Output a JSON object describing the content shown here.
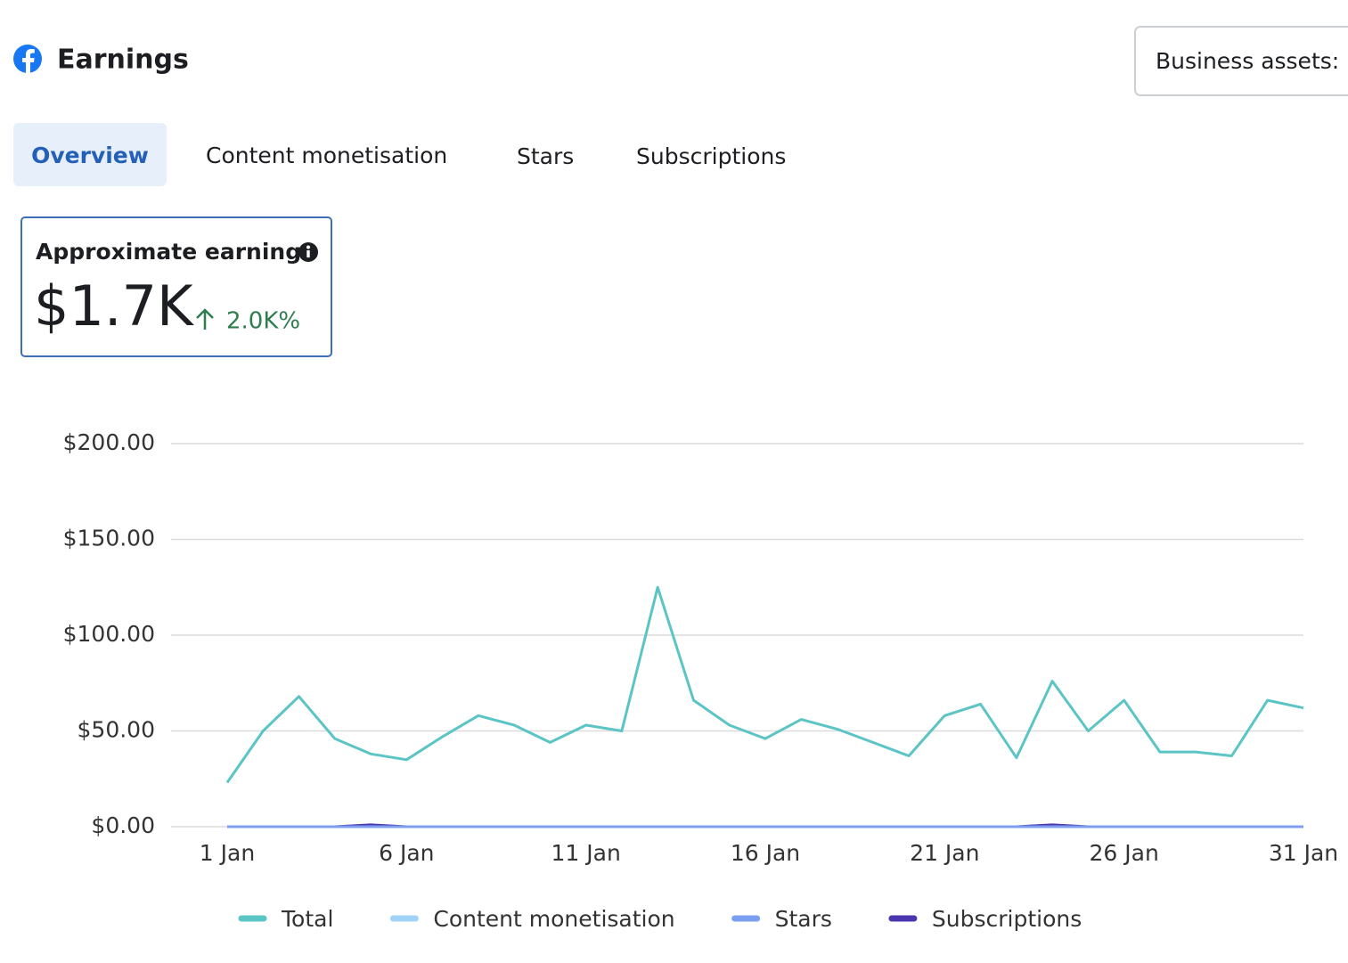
{
  "header": {
    "title": "Earnings",
    "button": "Business assets:"
  },
  "tabs": [
    "Overview",
    "Content monetisation",
    "Stars",
    "Subscriptions"
  ],
  "card": {
    "title": "Approximate earnings",
    "value": "$1.7K",
    "change": "2.0K%"
  },
  "chart_data": {
    "type": "line",
    "categories": [
      "1 Jan",
      null,
      null,
      null,
      null,
      "6 Jan",
      null,
      null,
      null,
      null,
      "11 Jan",
      null,
      null,
      null,
      null,
      "16 Jan",
      null,
      null,
      null,
      null,
      "21 Jan",
      null,
      null,
      null,
      null,
      "26 Jan",
      null,
      null,
      null,
      null,
      "31 Jan"
    ],
    "series": [
      {
        "name": "Total",
        "color": "#5bc4c4",
        "values": [
          23,
          50,
          68,
          46,
          38,
          35,
          47,
          58,
          53,
          44,
          53,
          50,
          125,
          66,
          53,
          46,
          56,
          51,
          44,
          37,
          58,
          64,
          36,
          76,
          50,
          66,
          39,
          39,
          37,
          66,
          62
        ]
      },
      {
        "name": "Content monetisation",
        "color": "#9fd3f7",
        "values": [
          0,
          0,
          0,
          0,
          0,
          0,
          0,
          0,
          0,
          0,
          0,
          0,
          0,
          0,
          0,
          0,
          0,
          0,
          0,
          0,
          0,
          0,
          0,
          0,
          0,
          0,
          0,
          0,
          0,
          0,
          0
        ]
      },
      {
        "name": "Stars",
        "color": "#7b9ff0",
        "values": [
          0,
          0,
          0,
          0,
          0,
          0,
          0,
          0,
          0,
          0,
          0,
          0,
          0,
          0,
          0,
          0,
          0,
          0,
          0,
          0,
          0,
          0,
          0,
          0,
          0,
          0,
          0,
          0,
          0,
          0,
          0
        ]
      },
      {
        "name": "Subscriptions",
        "color": "#4b36b0",
        "values": [
          0,
          0,
          0,
          0,
          1,
          0,
          0,
          0,
          0,
          0,
          0,
          0,
          0,
          0,
          0,
          0,
          0,
          0,
          0,
          0,
          0,
          0,
          0,
          1,
          0,
          0,
          0,
          0,
          0,
          0,
          0
        ]
      }
    ],
    "ylim": [
      0,
      200
    ],
    "yticks": [
      {
        "value": 0,
        "label": "$0.00"
      },
      {
        "value": 50,
        "label": "$50.00"
      },
      {
        "value": 100,
        "label": "$100.00"
      },
      {
        "value": 150,
        "label": "$150.00"
      },
      {
        "value": 200,
        "label": "$200.00"
      }
    ],
    "grid": true
  }
}
